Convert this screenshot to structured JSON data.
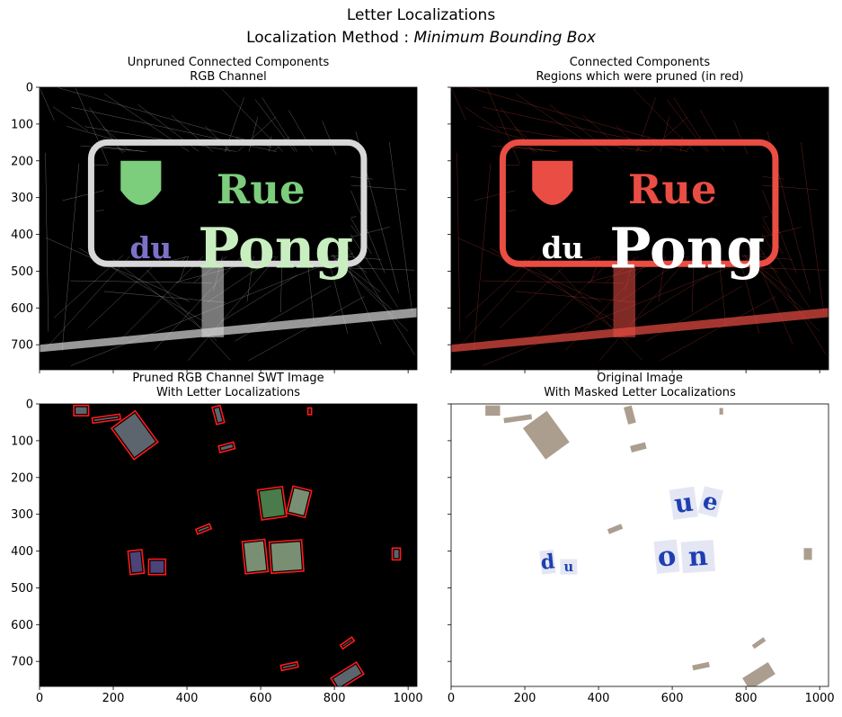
{
  "figure": {
    "title_line1": "Letter Localizations",
    "title_line2_prefix": "Localization Method : ",
    "title_line2_method": "Minimum Bounding Box"
  },
  "panels": [
    {
      "title_line1": "Unpruned Connected Components",
      "title_line2": "RGB Channel"
    },
    {
      "title_line1": "Connected Components",
      "title_line2": "Regions which were pruned (in red)"
    },
    {
      "title_line1": "Pruned RGB Channel SWT Image",
      "title_line2": "With Letter Localizations"
    },
    {
      "title_line1": "Original Image",
      "title_line2": "With Masked Letter Localizations"
    }
  ],
  "chart_data": {
    "type": "image",
    "layout": "2x2 subplots, shared axes",
    "xlim": [
      0,
      1024
    ],
    "ylim": [
      768,
      0
    ],
    "x_ticks": [
      0,
      200,
      400,
      600,
      800,
      1000
    ],
    "y_ticks": [
      0,
      100,
      200,
      300,
      400,
      500,
      600,
      700
    ],
    "colors": {
      "background_dark": "#000000",
      "background_light": "#ffffff",
      "components_gray": "#d8d8d8",
      "crest_green": "#7ccd7c",
      "letters_purple": "#7b72c8",
      "letters_light_green": "#c9efc1",
      "pruned_red": "#ea4d43",
      "box_red": "#ff1a1a",
      "letters_blue": "#1f3fb0"
    },
    "sign_text": [
      "Rue",
      "du",
      "Pong"
    ],
    "letter_boxes": [
      {
        "label": "",
        "center": [
          113,
          18
        ],
        "width": 40,
        "height": 28,
        "angle": 0
      },
      {
        "label": "",
        "center": [
          181,
          40
        ],
        "width": 76,
        "height": 14,
        "angle": -8
      },
      {
        "label": "",
        "center": [
          258,
          85
        ],
        "width": 80,
        "height": 105,
        "angle": -36
      },
      {
        "label": "",
        "center": [
          485,
          30
        ],
        "width": 22,
        "height": 48,
        "angle": -15
      },
      {
        "label": "",
        "center": [
          508,
          118
        ],
        "width": 42,
        "height": 18,
        "angle": -15
      },
      {
        "label": "",
        "center": [
          733,
          20
        ],
        "width": 10,
        "height": 18,
        "angle": 0
      },
      {
        "label": "u",
        "center": [
          631,
          270
        ],
        "width": 68,
        "height": 82,
        "angle": -8
      },
      {
        "label": "e",
        "center": [
          704,
          266
        ],
        "width": 52,
        "height": 75,
        "angle": 14
      },
      {
        "label": "",
        "center": [
          445,
          340
        ],
        "width": 40,
        "height": 14,
        "angle": -22
      },
      {
        "label": "o",
        "center": [
          585,
          415
        ],
        "width": 62,
        "height": 88,
        "angle": -6
      },
      {
        "label": "n",
        "center": [
          670,
          415
        ],
        "width": 88,
        "height": 85,
        "angle": -4
      },
      {
        "label": "d",
        "center": [
          262,
          430
        ],
        "width": 38,
        "height": 64,
        "angle": -6
      },
      {
        "label": "u",
        "center": [
          319,
          443
        ],
        "width": 46,
        "height": 42,
        "angle": 0
      },
      {
        "label": "",
        "center": [
          968,
          408
        ],
        "width": 22,
        "height": 32,
        "angle": 0
      },
      {
        "label": "",
        "center": [
          835,
          650
        ],
        "width": 12,
        "height": 38,
        "angle": 55
      },
      {
        "label": "",
        "center": [
          678,
          713
        ],
        "width": 46,
        "height": 14,
        "angle": -12
      },
      {
        "label": "",
        "center": [
          835,
          740
        ],
        "width": 82,
        "height": 38,
        "angle": -32
      }
    ]
  }
}
